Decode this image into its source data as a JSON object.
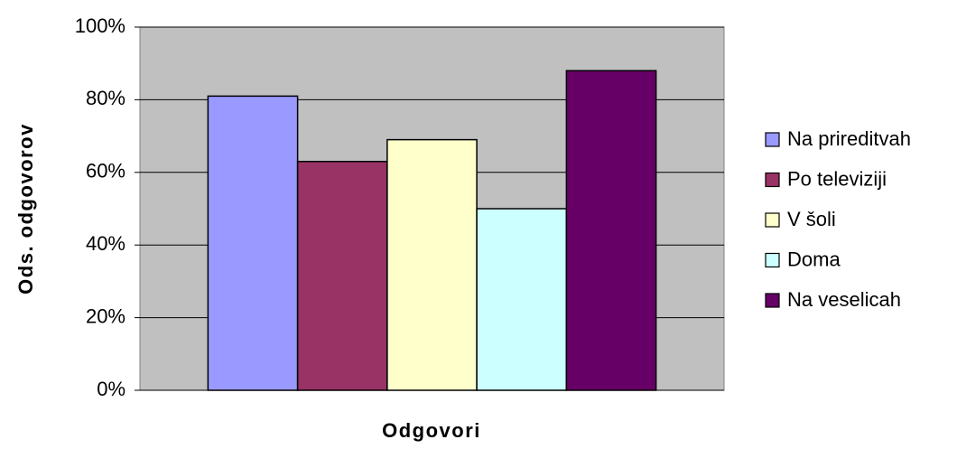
{
  "chart_data": {
    "type": "bar",
    "categories": [
      null
    ],
    "series": [
      {
        "name": "Na prireditvah",
        "color": "#9999ff",
        "values": [
          81
        ]
      },
      {
        "name": "Po televiziji",
        "color": "#993366",
        "values": [
          63
        ]
      },
      {
        "name": "V šoli",
        "color": "#ffffcc",
        "values": [
          69
        ]
      },
      {
        "name": "Doma",
        "color": "#ccffff",
        "values": [
          50
        ]
      },
      {
        "name": "Na veselicah",
        "color": "#660066",
        "values": [
          88
        ]
      }
    ],
    "xlabel": "Odgovori",
    "ylabel": "Ods. odgovorov",
    "ylim": [
      0,
      100
    ],
    "yticks": [
      {
        "value": 0,
        "label": "0%"
      },
      {
        "value": 20,
        "label": "20%"
      },
      {
        "value": 40,
        "label": "40%"
      },
      {
        "value": 60,
        "label": "60%"
      },
      {
        "value": 80,
        "label": "80%"
      },
      {
        "value": 100,
        "label": "100%"
      }
    ],
    "grid": true,
    "legend": "right",
    "plot_background": "#c0c0c0"
  }
}
